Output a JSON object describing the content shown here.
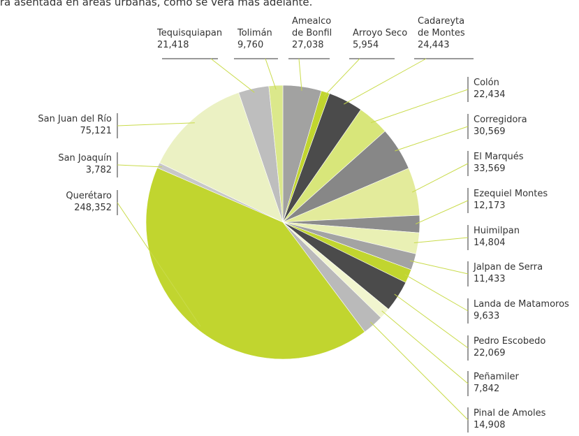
{
  "caption": "tra asentada en áreas urbanas, como se verá más adelante.",
  "chart_data": {
    "type": "pie",
    "categories": [
      "Amealco de Bonfil",
      "Arroyo Seco",
      "Cadareyta de Montes",
      "Colón",
      "Corregidora",
      "El Marqués",
      "Ezequiel Montes",
      "Huimilpan",
      "Jalpan de Serra",
      "Landa de Matamoros",
      "Pedro Escobedo",
      "Peñamiler",
      "Pinal de Amoles",
      "Querétaro",
      "San Joaquín",
      "San Juan del Río",
      "Tequisquiapan",
      "Tolimán"
    ],
    "values": [
      27038,
      5954,
      24443,
      22434,
      30569,
      33569,
      12173,
      14804,
      11433,
      9633,
      22069,
      7842,
      14908,
      248352,
      3782,
      75121,
      21418,
      9760
    ],
    "value_labels": [
      "27,038",
      "5,954",
      "24,443",
      "22,434",
      "30,569",
      "33,569",
      "12,173",
      "14,804",
      "11,433",
      "9,633",
      "22,069",
      "7,842",
      "14,908",
      "248,352",
      "3,782",
      "75,121",
      "21,418",
      "9,760"
    ],
    "colors": [
      "#a2a2a1",
      "#c1d52f",
      "#4b4b4b",
      "#d8e67a",
      "#878787",
      "#e3eb9b",
      "#8c8c8c",
      "#e9f0b4",
      "#a3a3a3",
      "#c1d52f",
      "#4b4b4b",
      "#f1f5cf",
      "#bababa",
      "#c1d52f",
      "#c8c8c8",
      "#ebf1c3",
      "#bebebe",
      "#dbe88b"
    ]
  }
}
